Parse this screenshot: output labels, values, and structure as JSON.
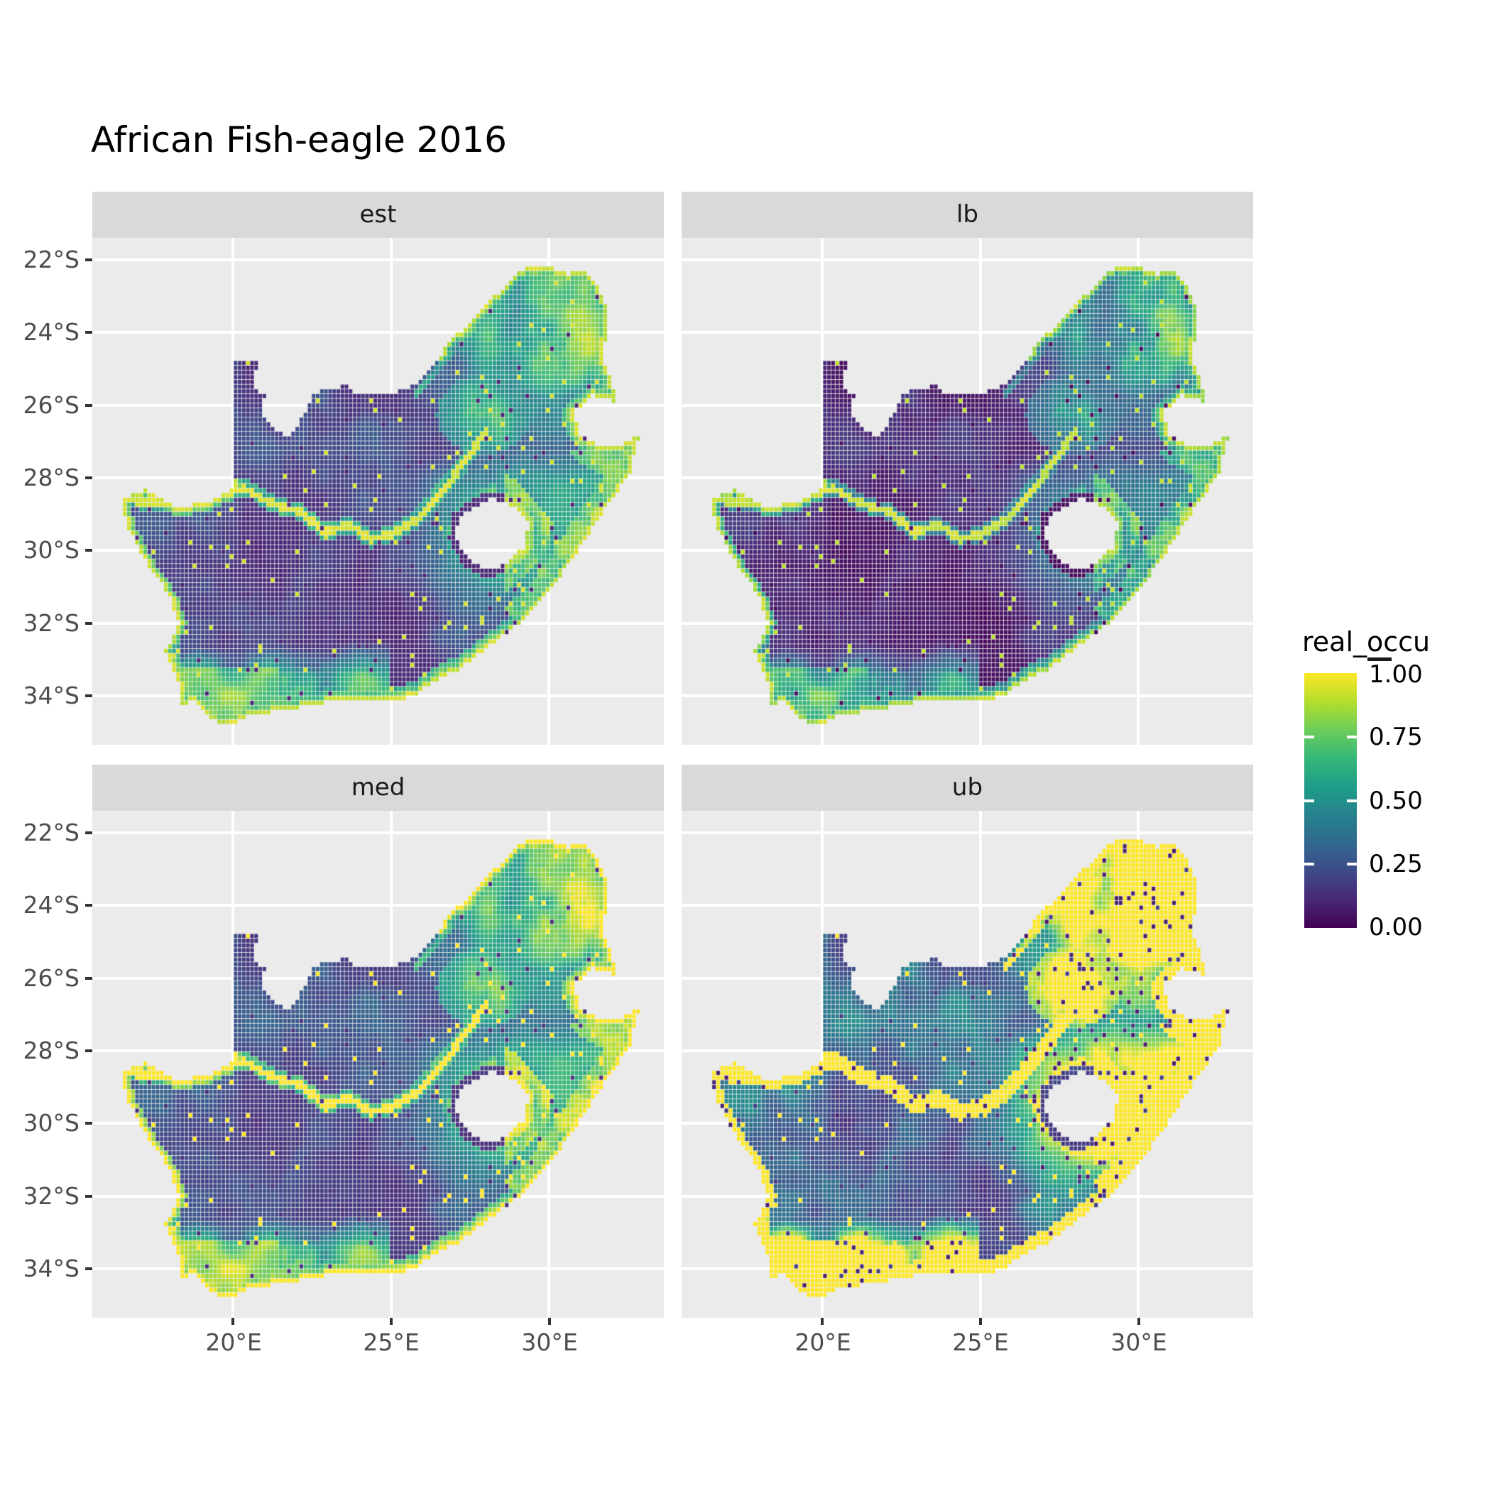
{
  "title": "African Fish-eagle 2016",
  "facets": [
    {
      "label": "est"
    },
    {
      "label": "lb"
    },
    {
      "label": "med"
    },
    {
      "label": "ub"
    }
  ],
  "axes": {
    "x": {
      "ticks": [
        "20°E",
        "25°E",
        "30°E"
      ]
    },
    "y": {
      "ticks": [
        "22°S",
        "24°S",
        "26°S",
        "28°S",
        "30°S",
        "32°S",
        "34°S"
      ]
    }
  },
  "legend": {
    "title": "real_occu",
    "tick_labels": [
      "1.00",
      "0.75",
      "0.50",
      "0.25",
      "0.00"
    ]
  },
  "colors": {
    "background": "#FFFFFF",
    "panel_bg": "#EBEBEB",
    "strip_bg": "#D9D9D9",
    "gridline": "#FFFFFF",
    "axis_text": "#4D4D4D",
    "tick_mark": "#333333",
    "strip_text": "#1A1A1A",
    "title_text": "#000000",
    "viridis_low": "#440154",
    "viridis_high": "#FDE725"
  },
  "chart_data": {
    "type": "heatmap",
    "subtype": "faceted_raster_map",
    "region": "South Africa",
    "title": "African Fish-eagle 2016",
    "variable": "real_occu",
    "value_range": [
      0,
      1
    ],
    "legend_ticks": [
      1.0,
      0.75,
      0.5,
      0.25,
      0.0
    ],
    "colormap": "viridis",
    "colormap_stops": [
      {
        "p": 0.0,
        "c": "#440154"
      },
      {
        "p": 0.111,
        "c": "#482878"
      },
      {
        "p": 0.222,
        "c": "#3E4A89"
      },
      {
        "p": 0.333,
        "c": "#31688E"
      },
      {
        "p": 0.444,
        "c": "#26828E"
      },
      {
        "p": 0.556,
        "c": "#1F9E89"
      },
      {
        "p": 0.667,
        "c": "#35B779"
      },
      {
        "p": 0.778,
        "c": "#6DCD59"
      },
      {
        "p": 0.889,
        "c": "#B4DE2C"
      },
      {
        "p": 1.0,
        "c": "#FDE725"
      }
    ],
    "x_ticks_deg_east": [
      20,
      25,
      30
    ],
    "y_ticks_deg_south": [
      22,
      24,
      26,
      28,
      30,
      32,
      34
    ],
    "lon_range_deg_east": [
      15.54,
      33.63
    ],
    "lat_range_deg_south": [
      21.39,
      35.35
    ],
    "cell_deg": 0.13,
    "facets": [
      {
        "label": "est",
        "transform": [
          [
            1.0,
            0.0
          ]
        ],
        "dark_speckle_rate": 0
      },
      {
        "label": "lb",
        "transform": [
          [
            0.82,
            -0.05
          ],
          [
            1.45,
            -0.45
          ]
        ],
        "dark_speckle_rate": 0
      },
      {
        "label": "med",
        "transform": [
          [
            1.08,
            0.03
          ]
        ],
        "dark_speckle_rate": 0
      },
      {
        "label": "ub",
        "transform": [
          [
            1.15,
            0.02
          ],
          [
            1.9,
            -0.02
          ]
        ],
        "dark_speckle_rate": 0.045
      }
    ],
    "map_outline_lon_latS": [
      [
        16.45,
        28.6
      ],
      [
        17.25,
        28.3
      ],
      [
        18.1,
        28.8
      ],
      [
        19.15,
        28.7
      ],
      [
        19.98,
        28.3
      ],
      [
        19.98,
        24.8
      ],
      [
        20.75,
        24.82
      ],
      [
        20.7,
        25.6
      ],
      [
        21.0,
        25.75
      ],
      [
        20.95,
        26.3
      ],
      [
        21.35,
        26.75
      ],
      [
        21.85,
        26.85
      ],
      [
        22.3,
        26.2
      ],
      [
        22.6,
        25.65
      ],
      [
        23.55,
        25.45
      ],
      [
        24.05,
        25.75
      ],
      [
        25.1,
        25.65
      ],
      [
        25.75,
        25.45
      ],
      [
        26.35,
        24.85
      ],
      [
        26.95,
        24.2
      ],
      [
        27.65,
        23.55
      ],
      [
        28.35,
        22.95
      ],
      [
        29.25,
        22.2
      ],
      [
        29.95,
        22.15
      ],
      [
        30.55,
        22.4
      ],
      [
        31.1,
        22.3
      ],
      [
        31.5,
        22.65
      ],
      [
        31.8,
        23.3
      ],
      [
        31.9,
        24.0
      ],
      [
        31.65,
        24.6
      ],
      [
        32.0,
        25.3
      ],
      [
        32.1,
        25.9
      ],
      [
        31.35,
        25.72
      ],
      [
        30.85,
        26.15
      ],
      [
        30.9,
        26.8
      ],
      [
        31.6,
        27.1
      ],
      [
        32.15,
        27.18
      ],
      [
        32.85,
        26.85
      ],
      [
        32.6,
        27.8
      ],
      [
        31.95,
        28.65
      ],
      [
        31.05,
        29.85
      ],
      [
        30.25,
        30.85
      ],
      [
        29.35,
        31.8
      ],
      [
        28.15,
        32.6
      ],
      [
        27.1,
        33.3
      ],
      [
        26.05,
        33.8
      ],
      [
        25.65,
        34.05
      ],
      [
        24.85,
        34.2
      ],
      [
        23.6,
        34.1
      ],
      [
        22.55,
        34.25
      ],
      [
        21.4,
        34.45
      ],
      [
        20.5,
        34.5
      ],
      [
        20.0,
        34.85
      ],
      [
        19.3,
        34.65
      ],
      [
        18.8,
        34.15
      ],
      [
        18.4,
        34.3
      ],
      [
        18.25,
        33.6
      ],
      [
        17.85,
        32.8
      ],
      [
        18.3,
        32.05
      ],
      [
        17.95,
        31.2
      ],
      [
        17.05,
        30.05
      ],
      [
        16.6,
        29.2
      ]
    ],
    "lesotho_hole_lon_latS": [
      [
        27.55,
        28.85
      ],
      [
        28.15,
        28.58
      ],
      [
        28.75,
        28.72
      ],
      [
        29.35,
        29.25
      ],
      [
        29.25,
        29.9
      ],
      [
        28.55,
        30.4
      ],
      [
        27.95,
        30.55
      ],
      [
        27.4,
        30.2
      ],
      [
        27.05,
        29.65
      ],
      [
        27.15,
        29.15
      ]
    ],
    "orange_vaal_river_lon_latS": [
      [
        16.55,
        28.6
      ],
      [
        17.6,
        28.72
      ],
      [
        18.6,
        28.82
      ],
      [
        19.6,
        28.5
      ],
      [
        20.4,
        28.3
      ],
      [
        21.2,
        28.7
      ],
      [
        22.1,
        28.95
      ],
      [
        22.95,
        29.5
      ],
      [
        23.7,
        29.3
      ],
      [
        24.35,
        29.7
      ],
      [
        25.05,
        29.55
      ],
      [
        25.75,
        29.2
      ],
      [
        26.35,
        28.65
      ],
      [
        26.95,
        28.0
      ],
      [
        27.55,
        27.3
      ],
      [
        28.05,
        26.7
      ]
    ]
  }
}
